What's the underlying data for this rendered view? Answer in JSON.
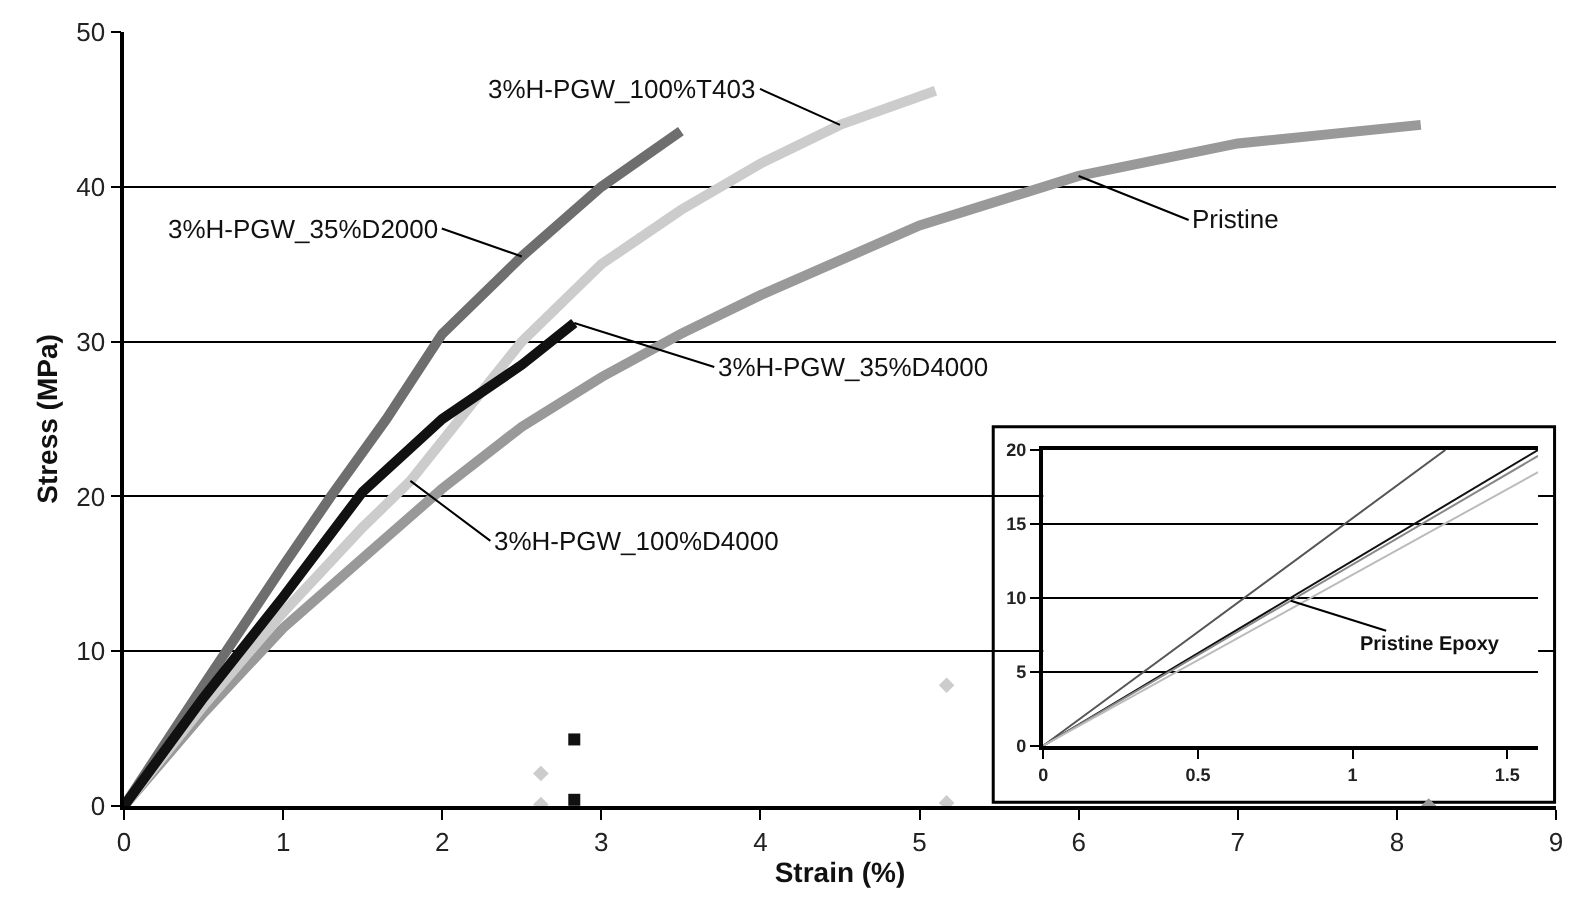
{
  "chart_data": [
    {
      "type": "line",
      "xlabel": "Strain (%)",
      "ylabel": "Stress (MPa)",
      "xlim": [
        0,
        9
      ],
      "xticks": [
        0,
        1,
        2,
        3,
        4,
        5,
        6,
        7,
        8,
        9
      ],
      "ylim": [
        0,
        50
      ],
      "yticks": [
        0,
        10,
        20,
        30,
        40,
        50
      ],
      "grid": "y",
      "marker": "none",
      "line_style": "solid",
      "series": [
        {
          "color": "#999999",
          "x": [
            0,
            0.5,
            1,
            1.5,
            2,
            2.5,
            3,
            3.5,
            4,
            5,
            6,
            7,
            8.15
          ],
          "values": [
            0,
            6,
            11.5,
            16,
            20.5,
            24.5,
            27.7,
            30.5,
            33,
            37.5,
            40.7,
            42.8,
            44
          ]
        },
        {
          "color": "#cccccc",
          "x": [
            0,
            0.5,
            1,
            1.5,
            1.8,
            2.5,
            3,
            3.5,
            4,
            4.5,
            5.1
          ],
          "values": [
            0,
            6.5,
            12.5,
            18,
            21,
            30,
            35,
            38.5,
            41.5,
            44,
            46.2
          ]
        },
        {
          "color": "#6e6e6e",
          "x": [
            0,
            0.5,
            1,
            1.3,
            1.65,
            2,
            2.5,
            3,
            3.5
          ],
          "values": [
            0,
            7.8,
            15.5,
            20,
            25,
            30.5,
            35.5,
            40,
            43.6
          ]
        },
        {
          "color": "#111111",
          "x": [
            0,
            0.5,
            1,
            1.5,
            2,
            2.5,
            2.83
          ],
          "values": [
            0,
            7,
            13.5,
            20.3,
            25,
            28.5,
            31.2
          ]
        },
        {
          "type": "scatter",
          "marker": "diamond",
          "color": "#cccccc",
          "x": [
            2.62,
            2.62,
            5.17,
            5.17
          ],
          "values": [
            2.1,
            0.1,
            7.8,
            0.2
          ]
        },
        {
          "type": "scatter",
          "marker": "square",
          "color": "#111111",
          "x": [
            2.83,
            2.83
          ],
          "values": [
            4.3,
            0.4
          ]
        },
        {
          "type": "scatter",
          "marker": "diamond",
          "color": "#999999",
          "x": [
            8.2
          ],
          "values": [
            0
          ]
        }
      ],
      "annotations": [
        {
          "text": "3%H-PGW_35%D2000",
          "x": 2.5,
          "y": 35.5
        },
        {
          "text": "3%H-PGW_100%T403",
          "x": 4.5,
          "y": 44
        },
        {
          "text": "Pristine",
          "x": 6,
          "y": 40.7
        },
        {
          "text": "3%H-PGW_35%D4000",
          "x": 2.83,
          "y": 31.2
        },
        {
          "text": "3%H-PGW_100%D4000",
          "x": 1.8,
          "y": 21
        }
      ]
    },
    {
      "type": "line",
      "xlim": [
        0,
        1.6
      ],
      "xticks": [
        0,
        0.5,
        1,
        1.5
      ],
      "ylim": [
        0,
        20
      ],
      "yticks": [
        0,
        5,
        10,
        15,
        20
      ],
      "grid": "y",
      "marker": "none",
      "line_style": "solid",
      "series": [
        {
          "color": "#555555",
          "x": [
            0,
            1.3
          ],
          "values": [
            0,
            20
          ]
        },
        {
          "color": "#111111",
          "x": [
            0,
            1.6
          ],
          "values": [
            0,
            20
          ]
        },
        {
          "color": "#888888",
          "x": [
            0,
            1.6
          ],
          "values": [
            0,
            19.6
          ]
        },
        {
          "color": "#bbbbbb",
          "x": [
            0,
            1.6
          ],
          "values": [
            0,
            18.5
          ]
        }
      ],
      "annotations": [
        {
          "text": "Pristine Epoxy",
          "x": 0.8,
          "y": 9.8
        }
      ]
    }
  ]
}
